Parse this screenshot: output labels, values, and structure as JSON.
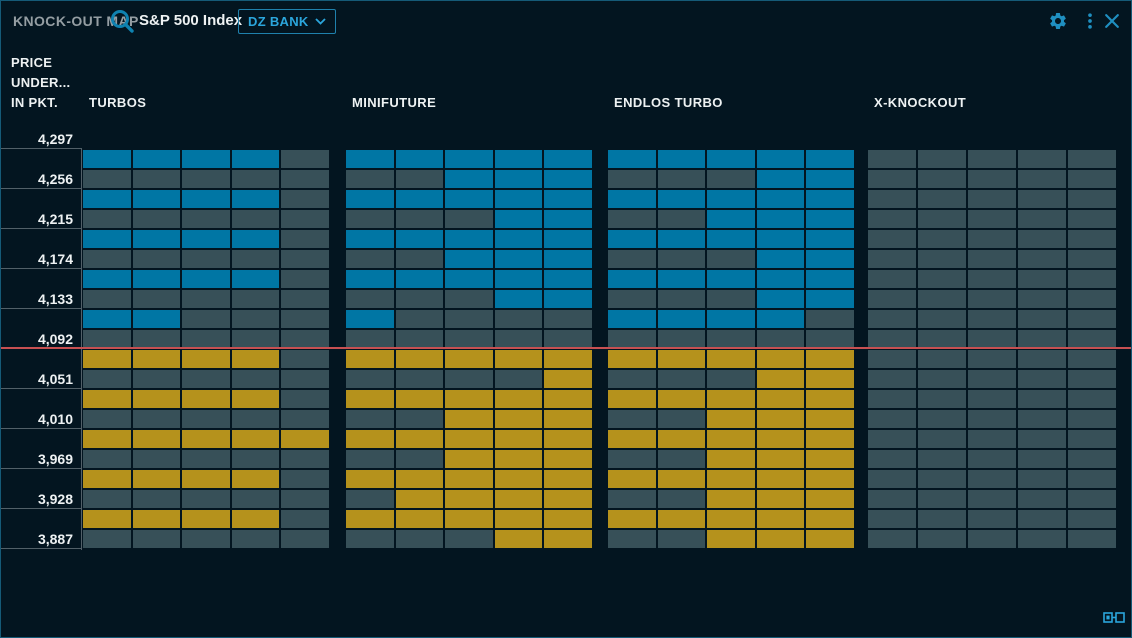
{
  "header": {
    "title": "KNOCK-OUT MAP",
    "instrument": "S&P 500 Index",
    "issuer": "DZ BANK"
  },
  "axis": {
    "title_lines": [
      "PRICE",
      "UNDER...",
      "IN PKT."
    ]
  },
  "colors": {
    "background": "#031520",
    "cell_empty": "#375058",
    "cell_above_price": "#0076a4",
    "cell_below_price": "#b5921c",
    "current_price_line": "#c75052",
    "accent_blue": "#2ba6dc"
  },
  "chart_data": {
    "type": "heatmap",
    "title": "KNOCK-OUT MAP",
    "subtitle": "S&P 500 Index — DZ BANK",
    "ylabel": "PRICE UNDER... IN PKT.",
    "price_ticks": [
      "4,297",
      "4,256",
      "4,215",
      "4,174",
      "4,133",
      "4,092",
      "4,051",
      "4,010",
      "3,969",
      "3,928",
      "3,887"
    ],
    "tick_step_points": 41,
    "rows_per_tick": 2,
    "current_price_line_between": [
      "4,092",
      "4,051"
    ],
    "cell_legend": {
      "b": "products with knock-out above current price (blue)",
      "y": "products with knock-out below current price (yellow)",
      "d": "no products (empty slate cell)"
    },
    "groups": [
      {
        "label": "TURBOS",
        "rows": [
          "bbbbd",
          "ddddd",
          "bbbbd",
          "ddddd",
          "bbbbd",
          "ddddd",
          "bbbbd",
          "ddddd",
          "bbddd",
          "ddddd",
          "yyyyd",
          "ddddd",
          "yyyyd",
          "ddddd",
          "yyyyy",
          "ddddd",
          "yyyyd",
          "ddddd",
          "yyyyd",
          "ddddd"
        ]
      },
      {
        "label": "MINIFUTURE",
        "rows": [
          "bbbbb",
          "ddbbb",
          "bbbbb",
          "dddbb",
          "bbbbb",
          "ddbbb",
          "bbbbb",
          "dddbb",
          "bdddd",
          "ddddd",
          "yyyyy",
          "ddddy",
          "yyyyy",
          "ddyyy",
          "yyyyy",
          "ddyyy",
          "yyyyy",
          "dyyyy",
          "yyyyy",
          "dddyy"
        ]
      },
      {
        "label": "ENDLOS TURBO",
        "rows": [
          "bbbbb",
          "dddbb",
          "bbbbb",
          "ddbbb",
          "bbbbb",
          "dddbb",
          "bbbbb",
          "dddbb",
          "bbbbd",
          "ddddd",
          "yyyyy",
          "dddyy",
          "yyyyy",
          "ddyyy",
          "yyyyy",
          "ddyyy",
          "yyyyy",
          "ddyyy",
          "yyyyy",
          "ddyyy"
        ]
      },
      {
        "label": "X-KNOCKOUT",
        "rows": [
          "ddddd",
          "ddddd",
          "ddddd",
          "ddddd",
          "ddddd",
          "ddddd",
          "ddddd",
          "ddddd",
          "ddddd",
          "ddddd",
          "ddddd",
          "ddddd",
          "ddddd",
          "ddddd",
          "ddddd",
          "ddddd",
          "ddddd",
          "ddddd",
          "ddddd",
          "ddddd"
        ]
      }
    ]
  }
}
